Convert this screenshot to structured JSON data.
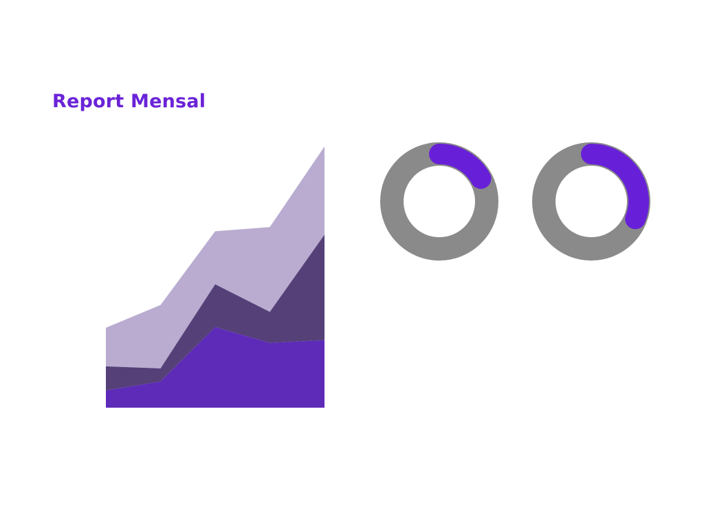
{
  "report": {
    "title": "Report Mensal"
  },
  "colors": {
    "title": "#6a23d8",
    "layer_top": "#b9acd0",
    "layer_mid": "#554078",
    "layer_bottom": "#5d2bb8",
    "donut_track": "#8a8a8a",
    "donut_progress": "#6720d8"
  },
  "chart_data": [
    {
      "type": "area",
      "stacked": true,
      "x": [
        1,
        2,
        3,
        4,
        5
      ],
      "series": [
        {
          "values": [
            25,
            38,
            117,
            94,
            98
          ]
        },
        {
          "values": [
            35,
            19,
            62,
            45,
            153
          ]
        },
        {
          "values": [
            56,
            92,
            77,
            123,
            128
          ]
        }
      ],
      "ylim": [
        0,
        380
      ],
      "grid": false,
      "legend": "none"
    },
    {
      "type": "pie",
      "style": "donut",
      "values": [
        0.17,
        0.83
      ]
    },
    {
      "type": "pie",
      "style": "donut",
      "values": [
        0.31,
        0.69
      ]
    }
  ]
}
